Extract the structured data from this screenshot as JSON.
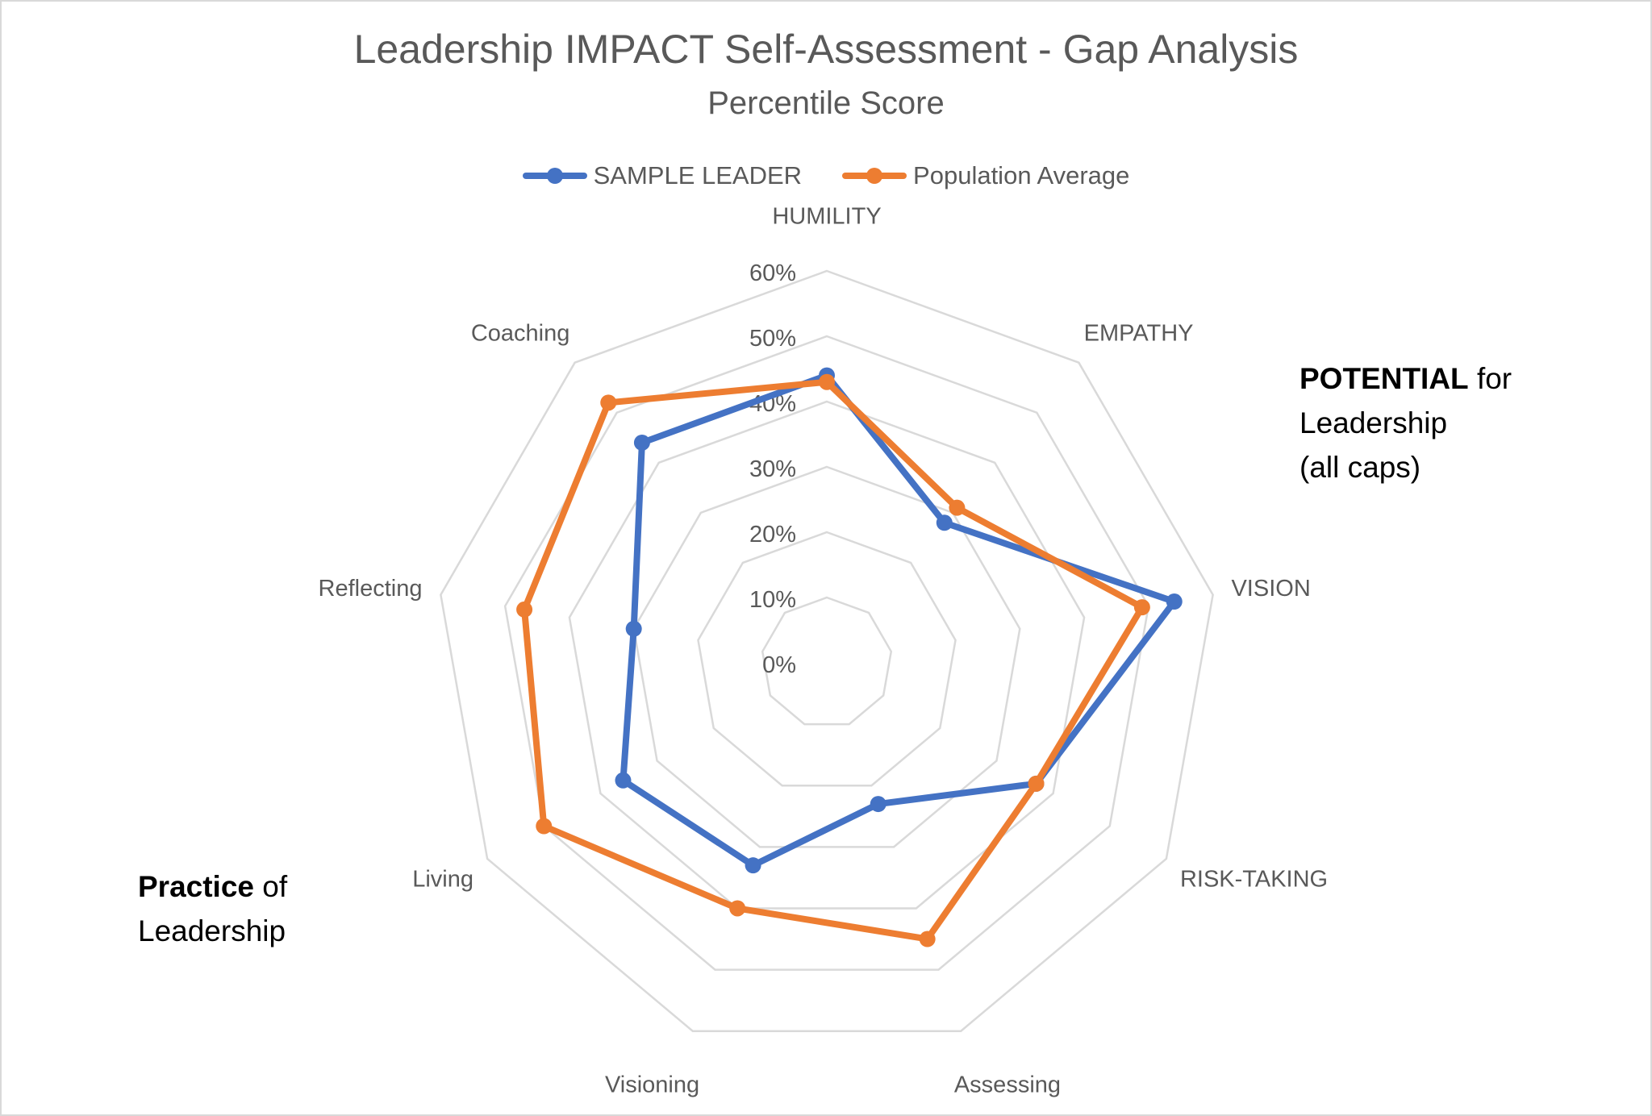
{
  "chart_data": {
    "type": "radar",
    "title": "Leadership IMPACT Self-Assessment - Gap Analysis",
    "subtitle": "Percentile Score",
    "categories": [
      "HUMILITY",
      "EMPATHY",
      "VISION",
      "RISK-TAKING",
      "Assessing",
      "Visioning",
      "Living",
      "Reflecting",
      "Coaching"
    ],
    "series": [
      {
        "name": "SAMPLE LEADER",
        "color": "#4472C4",
        "values": [
          44,
          28,
          54,
          37,
          23,
          33,
          36,
          30,
          44
        ]
      },
      {
        "name": "Population Average",
        "color": "#ED7D31",
        "values": [
          43,
          31,
          49,
          37,
          45,
          40,
          50,
          47,
          52
        ]
      }
    ],
    "rlim": [
      0,
      60
    ],
    "ticks": [
      "0%",
      "10%",
      "20%",
      "30%",
      "40%",
      "50%",
      "60%"
    ],
    "tick_values": [
      0,
      10,
      20,
      30,
      40,
      50,
      60
    ],
    "grid": true,
    "legend": "top",
    "gridColor": "#d9d9d9"
  },
  "annotations": {
    "potential_bold": "POTENTIAL",
    "potential_rest": " for",
    "potential_line2": "Leadership",
    "potential_line3": "(all caps)",
    "practice_bold": "Practice",
    "practice_rest": " of",
    "practice_line2": "Leadership"
  }
}
